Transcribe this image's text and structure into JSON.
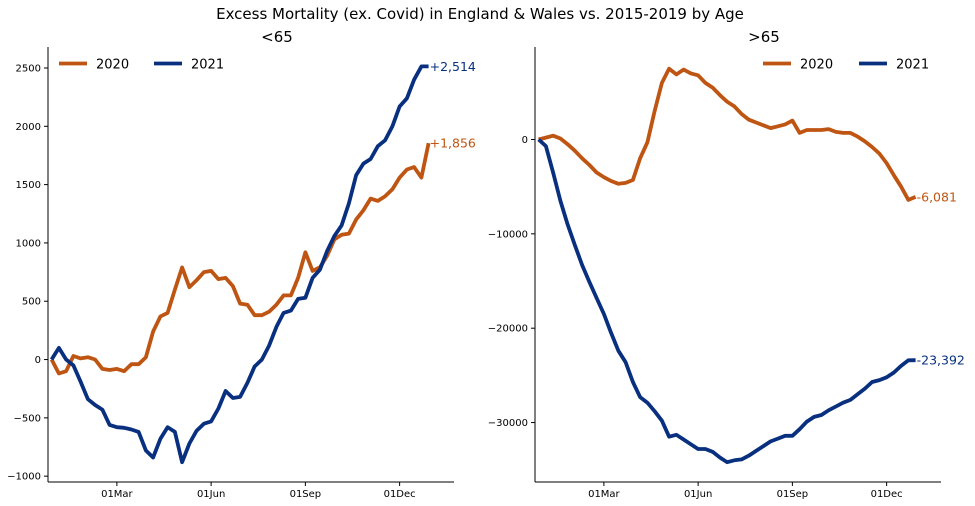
{
  "figure": {
    "title": "Excess Mortality (ex. Covid)  in England & Wales vs. 2015-2019 by Age"
  },
  "colors": {
    "2020": "#bf5512",
    "2021": "#08307f"
  },
  "chart_data": [
    {
      "type": "line",
      "title": "<65",
      "xlabel": "",
      "ylabel": "",
      "x_tick_labels": [
        "01Mar",
        "01Jun",
        "01Sep",
        "01Dec"
      ],
      "x_tick_weeks": [
        9,
        22,
        35,
        48
      ],
      "y_ticks": [
        -1000,
        -500,
        0,
        500,
        1000,
        1500,
        2000,
        2500
      ],
      "y_tick_labels": [
        "−1000",
        "−500",
        "0",
        "500",
        "1000",
        "1500",
        "2000",
        "2500"
      ],
      "ylim": [
        -1050,
        2680
      ],
      "xlim": [
        -0.5,
        55.5
      ],
      "legend_loc": "upper left",
      "grid": false,
      "series": [
        {
          "name": "2020",
          "end_label": "+1,856",
          "values": [
            0,
            -120,
            -100,
            30,
            10,
            20,
            0,
            -80,
            -90,
            -80,
            -100,
            -40,
            -40,
            20,
            240,
            370,
            400,
            600,
            790,
            620,
            680,
            750,
            760,
            690,
            700,
            630,
            480,
            470,
            380,
            380,
            410,
            470,
            550,
            550,
            700,
            920,
            760,
            790,
            890,
            1030,
            1070,
            1080,
            1200,
            1280,
            1380,
            1360,
            1400,
            1460,
            1560,
            1630,
            1650,
            1560,
            1856
          ]
        },
        {
          "name": "2021",
          "end_label": "+2,514",
          "values": [
            0,
            100,
            0,
            -50,
            -190,
            -340,
            -390,
            -430,
            -560,
            -580,
            -585,
            -600,
            -620,
            -780,
            -840,
            -680,
            -580,
            -620,
            -880,
            -720,
            -610,
            -550,
            -530,
            -420,
            -270,
            -330,
            -320,
            -200,
            -60,
            0,
            120,
            280,
            400,
            420,
            520,
            530,
            700,
            770,
            930,
            1060,
            1150,
            1340,
            1580,
            1680,
            1720,
            1830,
            1880,
            2000,
            2170,
            2240,
            2400,
            2514,
            2514
          ]
        }
      ]
    },
    {
      "type": "line",
      "title": ">65",
      "xlabel": "",
      "ylabel": "",
      "x_tick_labels": [
        "01Mar",
        "01Jun",
        "01Sep",
        "01Dec"
      ],
      "x_tick_weeks": [
        9,
        22,
        35,
        48
      ],
      "y_ticks": [
        -30000,
        -20000,
        -10000,
        0
      ],
      "y_tick_labels": [
        "−30000",
        "−20000",
        "−10000",
        "0"
      ],
      "ylim": [
        -36300,
        9800
      ],
      "xlim": [
        -0.5,
        55.5
      ],
      "legend_loc": "upper right",
      "grid": false,
      "series": [
        {
          "name": "2020",
          "end_label": "-6,081",
          "values": [
            0,
            200,
            400,
            100,
            -500,
            -1200,
            -2000,
            -2700,
            -3500,
            -4000,
            -4400,
            -4700,
            -4600,
            -4300,
            -2000,
            -300,
            3000,
            6000,
            7500,
            6900,
            7400,
            7000,
            6800,
            6000,
            5500,
            4700,
            4000,
            3500,
            2700,
            2100,
            1800,
            1500,
            1200,
            1400,
            1600,
            2000,
            700,
            1000,
            1000,
            1000,
            1100,
            800,
            700,
            700,
            300,
            -200,
            -800,
            -1500,
            -2500,
            -3800,
            -5000,
            -6400,
            -6081
          ]
        },
        {
          "name": "2021",
          "end_label": "-23,392",
          "values": [
            0,
            -700,
            -3500,
            -6500,
            -9000,
            -11200,
            -13300,
            -15100,
            -16800,
            -18500,
            -20500,
            -22400,
            -23600,
            -25700,
            -27300,
            -27900,
            -28800,
            -29800,
            -31500,
            -31300,
            -31800,
            -32300,
            -32800,
            -32800,
            -33100,
            -33700,
            -34200,
            -34000,
            -33900,
            -33500,
            -33000,
            -32500,
            -32000,
            -31700,
            -31400,
            -31400,
            -30700,
            -29900,
            -29400,
            -29200,
            -28700,
            -28300,
            -27900,
            -27600,
            -27000,
            -26400,
            -25700,
            -25500,
            -25200,
            -24700,
            -24000,
            -23400,
            -23392
          ]
        }
      ]
    }
  ]
}
